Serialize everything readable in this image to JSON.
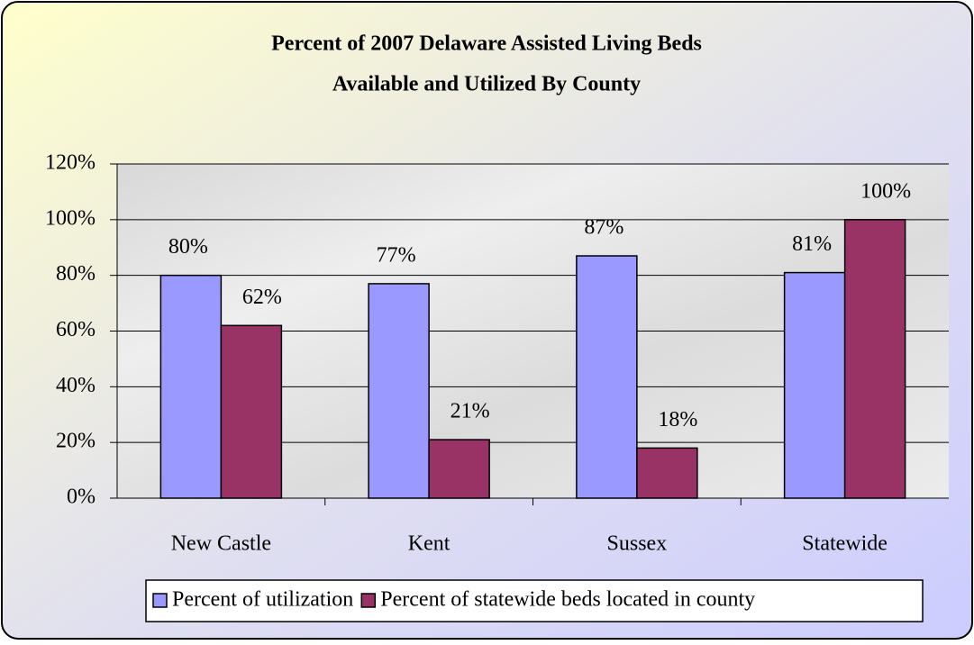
{
  "chart_data": {
    "type": "bar",
    "title": [
      "Percent of 2007 Delaware Assisted Living Beds",
      "Available and Utilized By County"
    ],
    "categories": [
      "New Castle",
      "Kent",
      "Sussex",
      "Statewide"
    ],
    "series": [
      {
        "name": "Percent of utilization",
        "color": "#9999ff",
        "values": [
          80,
          77,
          87,
          81
        ],
        "value_labels": [
          "80%",
          "77%",
          "87%",
          "81%"
        ]
      },
      {
        "name": "Percent of statewide beds located in county",
        "color": "#993366",
        "values": [
          62,
          21,
          18,
          100
        ],
        "value_labels": [
          "62%",
          "21%",
          "18%",
          "100%"
        ]
      }
    ],
    "ylim": [
      0,
      120
    ],
    "yticks": [
      {
        "value": 0,
        "label": "0%"
      },
      {
        "value": 20,
        "label": "20%"
      },
      {
        "value": 40,
        "label": "40%"
      },
      {
        "value": 60,
        "label": "60%"
      },
      {
        "value": 80,
        "label": "80%"
      },
      {
        "value": 100,
        "label": "100%"
      },
      {
        "value": 120,
        "label": "120%"
      }
    ],
    "grid": true,
    "legend": "bottom"
  }
}
